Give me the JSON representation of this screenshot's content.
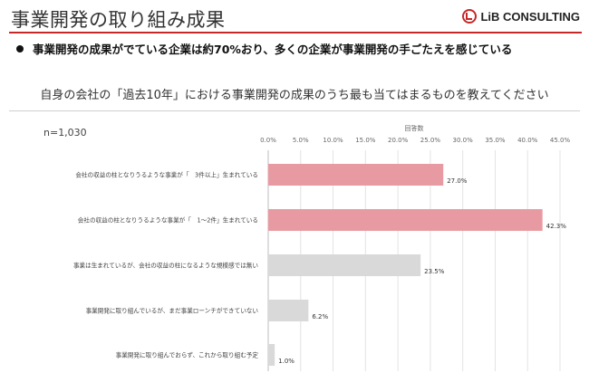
{
  "header": {
    "title": "事業開発の取り組み成果",
    "logo_text": "LiB CONSULTING",
    "logo_icon": "lib-logo-mark",
    "accent_color": "#c62828"
  },
  "headline": "事業開発の成果がでている企業は約70%おり、多くの企業が事業開発の手ごたえを感じている",
  "question": "自身の会社の「過去10年」における事業開発の成果のうち最も当てはまるものを教えてください",
  "sample_size": "n=1,030",
  "chart_data": {
    "type": "bar",
    "orientation": "horizontal",
    "xlabel": "回答数",
    "xlim": [
      0,
      45
    ],
    "xticks": [
      "0.0%",
      "5.0%",
      "10.0%",
      "15.0%",
      "20.0%",
      "25.0%",
      "30.0%",
      "35.0%",
      "40.0%",
      "45.0%"
    ],
    "grid": true,
    "categories": [
      "会社の収益の柱となりうるような事業が「　3件以上」生まれている",
      "会社の収益の柱となりうるような事業が「　1〜2件」生まれている",
      "事業は生まれているが、会社の収益の柱になるような規模感では無い",
      "事業開発に取り組んでいるが、まだ事業ローンチができていない",
      "事業開発に取り組んでおらず、これから取り組む予定"
    ],
    "values": [
      27.0,
      42.3,
      23.5,
      6.2,
      1.0
    ],
    "value_labels": [
      "27.0%",
      "42.3%",
      "23.5%",
      "6.2%",
      "1.0%"
    ],
    "colors": [
      "#e89aa2",
      "#e89aa2",
      "#d9d9d9",
      "#d9d9d9",
      "#d9d9d9"
    ]
  }
}
